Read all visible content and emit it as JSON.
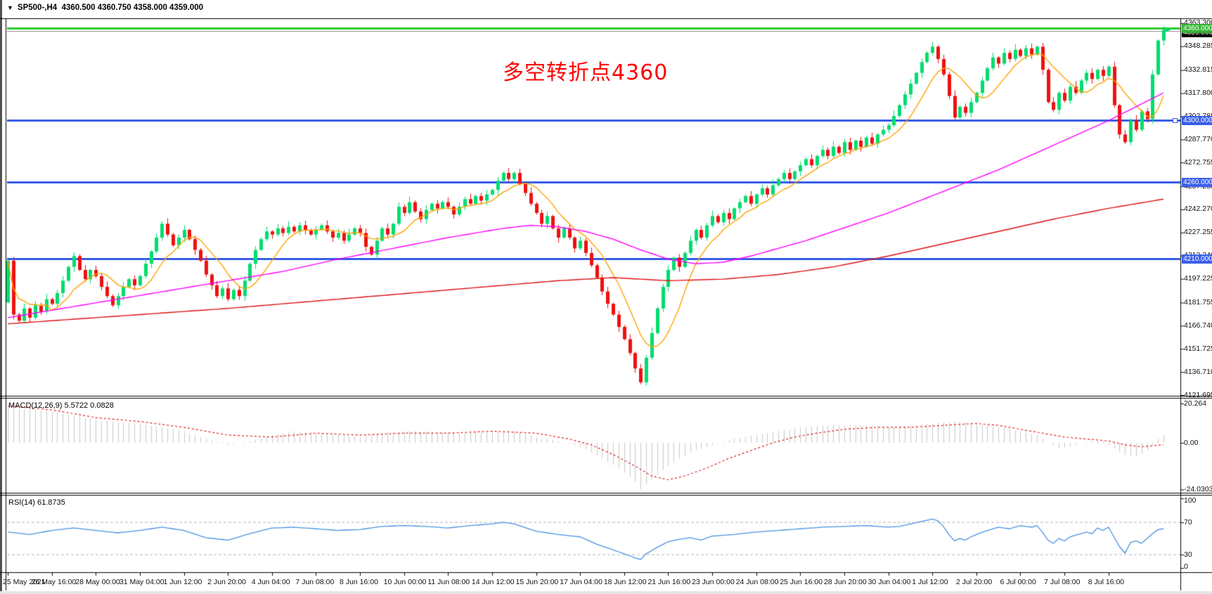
{
  "window": {
    "dropdown_icon": "▼",
    "symbol_title": "SP500-,H4",
    "ohlc_readout": "4360.500 4360.750 4358.000 4359.000"
  },
  "annotation": {
    "text": "多空转折点4360",
    "color": "#ff0000"
  },
  "colors": {
    "candle_up": "#00dd6e",
    "candle_down": "#ee1111",
    "ma_fast": "#ffa200",
    "ma_mid": "#ff00ff",
    "ma_slow": "#dd1111",
    "blue_level": "#3a5fe8",
    "green_level": "#35cc35",
    "current_price_line": "#9a9a9a",
    "macd_histogram": "#c8c8c8",
    "macd_signal": "#e02020",
    "rsi_line": "#4a92e2",
    "rsi_levels": "#b4b4b4",
    "badge_green_bg": "#35b535",
    "badge_blue_bg": "#3a5fe8",
    "badge_current_bg": "#000000"
  },
  "indicators": {
    "macd": {
      "name": "MACD(12,26,9)",
      "values": "5.5722 0.0828",
      "axis": [
        "20.264",
        "0.00",
        "-24.0303"
      ]
    },
    "rsi": {
      "name": "RSI(14)",
      "value": "61.8735",
      "axis": [
        "100",
        "70",
        "30",
        "0"
      ]
    }
  },
  "chart_data": [
    {
      "type": "candlestick",
      "symbol": "SP500-",
      "timeframe": "H4",
      "title": "SP500-,H4 4360.500 4360.750 4358.000 4359.000",
      "ylim": [
        4119.9,
        4366.0
      ],
      "first_open": 4182,
      "closes": [
        4209,
        4174,
        4170,
        4178,
        4172,
        4180,
        4176,
        4184,
        4181,
        4188,
        4196,
        4205,
        4212,
        4203,
        4197,
        4203,
        4199,
        4192,
        4186,
        4180,
        4186,
        4192,
        4197,
        4193,
        4199,
        4207,
        4215,
        4224,
        4233,
        4226,
        4219,
        4224,
        4229,
        4223,
        4216,
        4209,
        4200,
        4193,
        4186,
        4191,
        4184,
        4190,
        4186,
        4196,
        4207,
        4216,
        4223,
        4228,
        4226,
        4230,
        4227,
        4231,
        4228,
        4232,
        4229,
        4226,
        4229,
        4232,
        4228,
        4224,
        4227,
        4222,
        4226,
        4230,
        4227,
        4218,
        4213,
        4222,
        4230,
        4226,
        4233,
        4244,
        4240,
        4247,
        4241,
        4236,
        4242,
        4246,
        4243,
        4247,
        4244,
        4239,
        4244,
        4249,
        4246,
        4251,
        4248,
        4252,
        4255,
        4261,
        4266,
        4262,
        4266,
        4259,
        4253,
        4246,
        4240,
        4233,
        4238,
        4230,
        4224,
        4230,
        4224,
        4217,
        4222,
        4214,
        4206,
        4198,
        4189,
        4181,
        4174,
        4166,
        4158,
        4149,
        4139,
        4130,
        4146,
        4162,
        4178,
        4192,
        4203,
        4211,
        4205,
        4214,
        4222,
        4229,
        4224,
        4232,
        4238,
        4234,
        4240,
        4236,
        4243,
        4247,
        4251,
        4246,
        4252,
        4256,
        4252,
        4258,
        4262,
        4266,
        4262,
        4267,
        4271,
        4275,
        4271,
        4277,
        4281,
        4277,
        4283,
        4279,
        4286,
        4281,
        4287,
        4283,
        4289,
        4285,
        4291,
        4294,
        4297,
        4303,
        4310,
        4317,
        4324,
        4331,
        4338,
        4344,
        4348,
        4340,
        4330,
        4316,
        4302,
        4309,
        4305,
        4312,
        4318,
        4326,
        4334,
        4341,
        4337,
        4344,
        4340,
        4346,
        4342,
        4347,
        4343,
        4348,
        4333,
        4312,
        4307,
        4318,
        4313,
        4322,
        4318,
        4326,
        4331,
        4327,
        4333,
        4329,
        4335,
        4310,
        4291,
        4286,
        4300,
        4294,
        4306,
        4301,
        4330,
        4352,
        4359
      ],
      "levels": {
        "green": {
          "value": 4360,
          "label": "4360.000"
        },
        "current": {
          "value": 4359,
          "label": "4359.000"
        },
        "blue": [
          {
            "value": 4300,
            "label": "4300.000"
          },
          {
            "value": 4260,
            "label": "4260.000"
          },
          {
            "value": 4210,
            "label": "4210.000"
          }
        ]
      },
      "y_tick_labels": [
        "4363.300",
        "4348.285",
        "4332.815",
        "4317.800",
        "4302.785",
        "4287.770",
        "4272.755",
        "4257.285",
        "4242.270",
        "4227.255",
        "4212.240",
        "4197.225",
        "4181.755",
        "4166.740",
        "4151.725",
        "4136.710",
        "4121.695"
      ],
      "x_tick_labels": [
        "25 May 2021",
        "26 May 16:00",
        "28 May 00:00",
        "31 May 04:00",
        "1 Jun 12:00",
        "2 Jun 20:00",
        "4 Jun 04:00",
        "7 Jun 08:00",
        "8 Jun 16:00",
        "10 Jun 00:00",
        "11 Jun 08:00",
        "14 Jun 12:00",
        "15 Jun 20:00",
        "17 Jun 04:00",
        "18 Jun 12:00",
        "21 Jun 16:00",
        "23 Jun 00:00",
        "24 Jun 08:00",
        "25 Jun 16:00",
        "28 Jun 20:00",
        "30 Jun 04:00",
        "1 Jul 12:00",
        "2 Jul 20:00",
        "6 Jul 00:00",
        "7 Jul 08:00",
        "8 Jul 16:00"
      ],
      "bars_per_tick": 8,
      "overlays": [
        {
          "name": "ma-fast",
          "kind": "sma",
          "period": 8,
          "color": "#ffa200"
        },
        {
          "name": "ma-mid",
          "color": "#ff00ff",
          "path": [
            [
              0,
              4172
            ],
            [
              10,
              4178
            ],
            [
              20,
              4184
            ],
            [
              30,
              4190
            ],
            [
              40,
              4196
            ],
            [
              50,
              4202
            ],
            [
              60,
              4210
            ],
            [
              70,
              4217
            ],
            [
              80,
              4224
            ],
            [
              90,
              4230
            ],
            [
              95,
              4232
            ],
            [
              100,
              4231
            ],
            [
              105,
              4228
            ],
            [
              110,
              4223
            ],
            [
              115,
              4216
            ],
            [
              120,
              4210
            ],
            [
              125,
              4207
            ],
            [
              130,
              4208
            ],
            [
              135,
              4212
            ],
            [
              140,
              4217
            ],
            [
              145,
              4222
            ],
            [
              150,
              4228
            ],
            [
              155,
              4234
            ],
            [
              160,
              4240
            ],
            [
              165,
              4247
            ],
            [
              170,
              4254
            ],
            [
              175,
              4261
            ],
            [
              180,
              4268
            ],
            [
              185,
              4276
            ],
            [
              190,
              4284
            ],
            [
              195,
              4292
            ],
            [
              200,
              4300
            ],
            [
              205,
              4309
            ],
            [
              210,
              4318
            ]
          ]
        },
        {
          "name": "ma-slow",
          "color": "#dd1111",
          "path": [
            [
              0,
              4168
            ],
            [
              20,
              4173
            ],
            [
              40,
              4178
            ],
            [
              60,
              4184
            ],
            [
              80,
              4190
            ],
            [
              100,
              4196
            ],
            [
              110,
              4198
            ],
            [
              120,
              4196
            ],
            [
              130,
              4197
            ],
            [
              140,
              4200
            ],
            [
              150,
              4205
            ],
            [
              160,
              4212
            ],
            [
              170,
              4220
            ],
            [
              180,
              4228
            ],
            [
              190,
              4236
            ],
            [
              200,
              4243
            ],
            [
              210,
              4249
            ]
          ]
        }
      ]
    },
    {
      "type": "macd",
      "title": "MACD(12,26,9) 5.5722 0.0828",
      "ylim": [
        -24.0303,
        20.264
      ],
      "histogram": [
        [
          0,
          18
        ],
        [
          4,
          17
        ],
        [
          8,
          16
        ],
        [
          12,
          14
        ],
        [
          16,
          12
        ],
        [
          20,
          11
        ],
        [
          24,
          10
        ],
        [
          28,
          8
        ],
        [
          32,
          6
        ],
        [
          36,
          2
        ],
        [
          40,
          -1
        ],
        [
          44,
          1
        ],
        [
          48,
          4
        ],
        [
          52,
          6
        ],
        [
          56,
          5
        ],
        [
          60,
          4
        ],
        [
          64,
          3
        ],
        [
          68,
          5
        ],
        [
          72,
          6
        ],
        [
          76,
          6
        ],
        [
          80,
          5
        ],
        [
          84,
          5
        ],
        [
          88,
          6
        ],
        [
          92,
          6
        ],
        [
          96,
          3
        ],
        [
          100,
          1
        ],
        [
          104,
          -2
        ],
        [
          108,
          -8
        ],
        [
          111,
          -13
        ],
        [
          114,
          -20
        ],
        [
          115,
          -24
        ],
        [
          117,
          -19
        ],
        [
          119,
          -14
        ],
        [
          121,
          -10
        ],
        [
          124,
          -5
        ],
        [
          128,
          -1
        ],
        [
          132,
          2
        ],
        [
          136,
          4
        ],
        [
          140,
          6
        ],
        [
          144,
          8
        ],
        [
          150,
          9
        ],
        [
          156,
          9
        ],
        [
          160,
          8
        ],
        [
          164,
          9
        ],
        [
          168,
          10
        ],
        [
          172,
          11
        ],
        [
          176,
          10
        ],
        [
          180,
          8
        ],
        [
          184,
          6
        ],
        [
          187,
          4
        ],
        [
          189,
          0
        ],
        [
          191,
          -3
        ],
        [
          193,
          -2
        ],
        [
          195,
          0
        ],
        [
          197,
          1
        ],
        [
          199,
          1
        ],
        [
          201,
          -3
        ],
        [
          203,
          -6
        ],
        [
          205,
          -7
        ],
        [
          207,
          -4
        ],
        [
          209,
          2
        ],
        [
          210,
          4
        ]
      ],
      "signal": [
        [
          0,
          19
        ],
        [
          8,
          17
        ],
        [
          16,
          13
        ],
        [
          24,
          11
        ],
        [
          32,
          8
        ],
        [
          40,
          4
        ],
        [
          48,
          3
        ],
        [
          56,
          5
        ],
        [
          64,
          4
        ],
        [
          72,
          5
        ],
        [
          80,
          5
        ],
        [
          88,
          6
        ],
        [
          96,
          5
        ],
        [
          102,
          2
        ],
        [
          106,
          -1
        ],
        [
          110,
          -6
        ],
        [
          114,
          -12
        ],
        [
          117,
          -17
        ],
        [
          120,
          -19
        ],
        [
          123,
          -17
        ],
        [
          127,
          -13
        ],
        [
          131,
          -8
        ],
        [
          135,
          -4
        ],
        [
          139,
          0
        ],
        [
          143,
          3
        ],
        [
          147,
          5
        ],
        [
          152,
          7
        ],
        [
          158,
          8
        ],
        [
          164,
          8
        ],
        [
          170,
          9
        ],
        [
          176,
          10
        ],
        [
          180,
          9
        ],
        [
          184,
          7
        ],
        [
          188,
          5
        ],
        [
          192,
          3
        ],
        [
          196,
          2
        ],
        [
          200,
          1
        ],
        [
          203,
          -1
        ],
        [
          206,
          -2
        ],
        [
          210,
          -1
        ]
      ]
    },
    {
      "type": "rsi",
      "title": "RSI(14) 61.8735",
      "ylim": [
        0,
        100
      ],
      "levels": [
        70,
        30
      ],
      "line": [
        [
          0,
          58
        ],
        [
          4,
          55
        ],
        [
          8,
          60
        ],
        [
          12,
          63
        ],
        [
          16,
          60
        ],
        [
          20,
          57
        ],
        [
          24,
          60
        ],
        [
          28,
          64
        ],
        [
          32,
          60
        ],
        [
          36,
          51
        ],
        [
          40,
          48
        ],
        [
          44,
          56
        ],
        [
          48,
          63
        ],
        [
          52,
          64
        ],
        [
          56,
          62
        ],
        [
          60,
          60
        ],
        [
          64,
          61
        ],
        [
          68,
          65
        ],
        [
          72,
          66
        ],
        [
          76,
          65
        ],
        [
          80,
          63
        ],
        [
          84,
          66
        ],
        [
          88,
          68
        ],
        [
          90,
          70
        ],
        [
          92,
          68
        ],
        [
          96,
          59
        ],
        [
          100,
          55
        ],
        [
          104,
          52
        ],
        [
          107,
          43
        ],
        [
          110,
          36
        ],
        [
          112,
          31
        ],
        [
          114,
          26
        ],
        [
          115,
          24
        ],
        [
          116,
          31
        ],
        [
          118,
          39
        ],
        [
          120,
          46
        ],
        [
          122,
          49
        ],
        [
          124,
          51
        ],
        [
          126,
          48
        ],
        [
          128,
          53
        ],
        [
          132,
          55
        ],
        [
          136,
          58
        ],
        [
          140,
          60
        ],
        [
          144,
          62
        ],
        [
          148,
          64
        ],
        [
          152,
          65
        ],
        [
          156,
          66
        ],
        [
          160,
          64
        ],
        [
          162,
          65
        ],
        [
          164,
          68
        ],
        [
          166,
          71
        ],
        [
          168,
          74
        ],
        [
          169,
          72
        ],
        [
          170,
          65
        ],
        [
          171,
          55
        ],
        [
          172,
          47
        ],
        [
          173,
          50
        ],
        [
          174,
          48
        ],
        [
          175,
          52
        ],
        [
          176,
          55
        ],
        [
          178,
          60
        ],
        [
          180,
          64
        ],
        [
          182,
          62
        ],
        [
          184,
          66
        ],
        [
          186,
          64
        ],
        [
          187,
          66
        ],
        [
          188,
          58
        ],
        [
          189,
          48
        ],
        [
          190,
          44
        ],
        [
          191,
          50
        ],
        [
          192,
          47
        ],
        [
          193,
          52
        ],
        [
          194,
          54
        ],
        [
          195,
          56
        ],
        [
          196,
          58
        ],
        [
          197,
          56
        ],
        [
          198,
          63
        ],
        [
          199,
          60
        ],
        [
          200,
          64
        ],
        [
          201,
          52
        ],
        [
          202,
          40
        ],
        [
          203,
          32
        ],
        [
          204,
          45
        ],
        [
          205,
          47
        ],
        [
          206,
          44
        ],
        [
          207,
          50
        ],
        [
          208,
          56
        ],
        [
          209,
          61
        ],
        [
          210,
          62
        ]
      ]
    }
  ]
}
